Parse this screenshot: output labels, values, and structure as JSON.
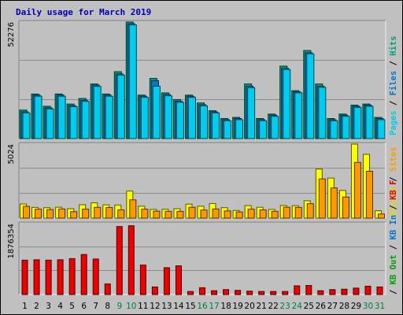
{
  "chart_data": {
    "type": "bar",
    "title": "Daily usage for March 2019",
    "categories": [
      "1",
      "2",
      "3",
      "4",
      "5",
      "6",
      "7",
      "8",
      "9",
      "10",
      "11",
      "12",
      "13",
      "14",
      "15",
      "16",
      "17",
      "18",
      "19",
      "20",
      "21",
      "22",
      "23",
      "24",
      "25",
      "26",
      "27",
      "28",
      "29",
      "30",
      "31"
    ],
    "weekend_days": [
      "9",
      "10",
      "16",
      "17",
      "23",
      "24",
      "30",
      "31"
    ],
    "colors": {
      "title": "#0000bb",
      "background": "#c0c0c0",
      "frame_light": "#f0f0f0",
      "frame_dark": "#808080",
      "gridline": "#8c8c8c",
      "weekday_label": "#000000",
      "weekend_label": "#007f3f",
      "separator": "#000000"
    },
    "panels": [
      {
        "id": "hits",
        "max_label": "52276",
        "ymax": 52276,
        "series": [
          {
            "name": "Hits",
            "color": "#00a07a",
            "values": [
              12800,
              20000,
              14500,
              20000,
              15500,
              18000,
              24500,
              20000,
              30000,
              52276,
              19500,
              27000,
              20500,
              17500,
              19500,
              16000,
              12500,
              9000,
              9500,
              24500,
              9000,
              11000,
              32500,
              21500,
              39500,
              24500,
              9000,
              11000,
              15000,
              15500,
              9500
            ]
          },
          {
            "name": "Files",
            "color": "#0077cc",
            "values": [
              12000,
              19500,
              13800,
              19500,
              14800,
              17200,
              24000,
              19500,
              29000,
              51500,
              19000,
              26000,
              19800,
              16800,
              19000,
              15200,
              12000,
              8500,
              9000,
              23500,
              8500,
              10500,
              31500,
              21000,
              38500,
              23500,
              8500,
              10500,
              14500,
              15000,
              9000
            ]
          },
          {
            "name": "Pages",
            "color": "#00ccee",
            "values": [
              11500,
              19000,
              13300,
              19000,
              14300,
              16700,
              23400,
              19000,
              28500,
              51000,
              18500,
              23500,
              19200,
              16300,
              18500,
              14700,
              11500,
              8000,
              8500,
              22800,
              8000,
              10000,
              31000,
              20500,
              38000,
              23000,
              8000,
              10000,
              14000,
              14500,
              8500
            ]
          }
        ]
      },
      {
        "id": "visits",
        "max_label": "5024",
        "ymax": 5024,
        "series": [
          {
            "name": "Visits",
            "color": "#ffff00",
            "values": [
              960,
              730,
              710,
              740,
              640,
              910,
              1040,
              900,
              890,
              1840,
              810,
              590,
              600,
              640,
              950,
              810,
              990,
              710,
              520,
              850,
              740,
              590,
              860,
              840,
              1180,
              3330,
              2720,
              1880,
              5024,
              4330,
              500
            ]
          },
          {
            "name": "Sites",
            "color": "#ff9900",
            "values": [
              800,
              610,
              580,
              620,
              440,
              610,
              730,
              720,
              560,
              1240,
              610,
              470,
              460,
              460,
              740,
              550,
              620,
              490,
              420,
              610,
              560,
              460,
              740,
              730,
              980,
              2660,
              2050,
              1430,
              3780,
              3180,
              280
            ]
          }
        ]
      },
      {
        "id": "kbytes",
        "max_label": "1876354",
        "ymax": 1876354,
        "series": [
          {
            "name": "KB F",
            "color": "#ee0000",
            "values": [
              910000,
              920000,
              910000,
              920000,
              950000,
              1060000,
              940000,
              280000,
              1800000,
              1820000,
              780000,
              200000,
              710000,
              760000,
              80000,
              180000,
              100000,
              130000,
              110000,
              90000,
              80000,
              80000,
              80000,
              230000,
              240000,
              100000,
              130000,
              140000,
              170000,
              220000,
              200000
            ]
          }
        ]
      }
    ],
    "side_labels": [
      {
        "text": "Pages",
        "color": "#00ccee"
      },
      {
        "text": " / ",
        "color": "#000000"
      },
      {
        "text": "Files",
        "color": "#0077cc"
      },
      {
        "text": " / ",
        "color": "#000000"
      },
      {
        "text": "Hits",
        "color": "#00a07a"
      },
      {
        "text": "Visits",
        "color": "#dddd00"
      },
      {
        "text": " / ",
        "color": "#000000"
      },
      {
        "text": "Sites",
        "color": "#ff9900"
      },
      {
        "text": " / ",
        "color": "#000000"
      },
      {
        "text": "KB Out",
        "color": "#00a000"
      },
      {
        "text": " / ",
        "color": "#000000"
      },
      {
        "text": "KB In",
        "color": "#0077cc"
      },
      {
        "text": " / ",
        "color": "#000000"
      },
      {
        "text": "KB F",
        "color": "#ee0000"
      }
    ]
  }
}
